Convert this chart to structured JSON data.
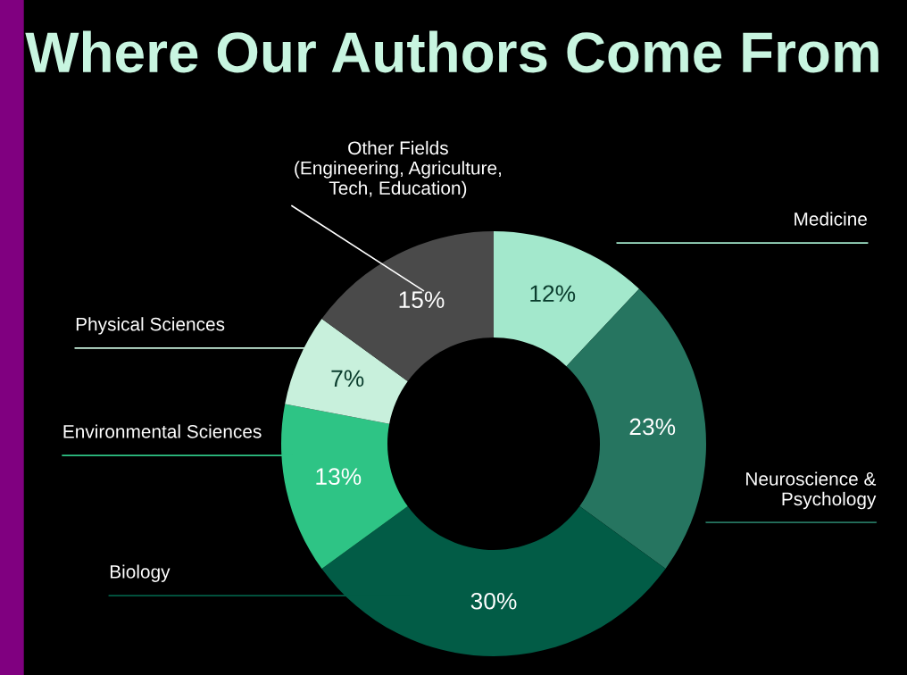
{
  "chart_data": {
    "type": "donut",
    "title": "Where Our Authors Come From",
    "categories": [
      "Medicine",
      "Neuroscience &\nPsychology",
      "Biology",
      "Environmental Sciences",
      "Physical Sciences",
      "Other Fields\n(Engineering, Agriculture,\nTech, Education)"
    ],
    "values": [
      12,
      23,
      30,
      13,
      7,
      15
    ],
    "value_labels": [
      "12%",
      "23%",
      "30%",
      "13%",
      "7%",
      "15%"
    ],
    "colors": [
      "#a3e8cc",
      "#267560",
      "#025c46",
      "#2ec485",
      "#c8f0dc",
      "#4a4a4a"
    ]
  }
}
